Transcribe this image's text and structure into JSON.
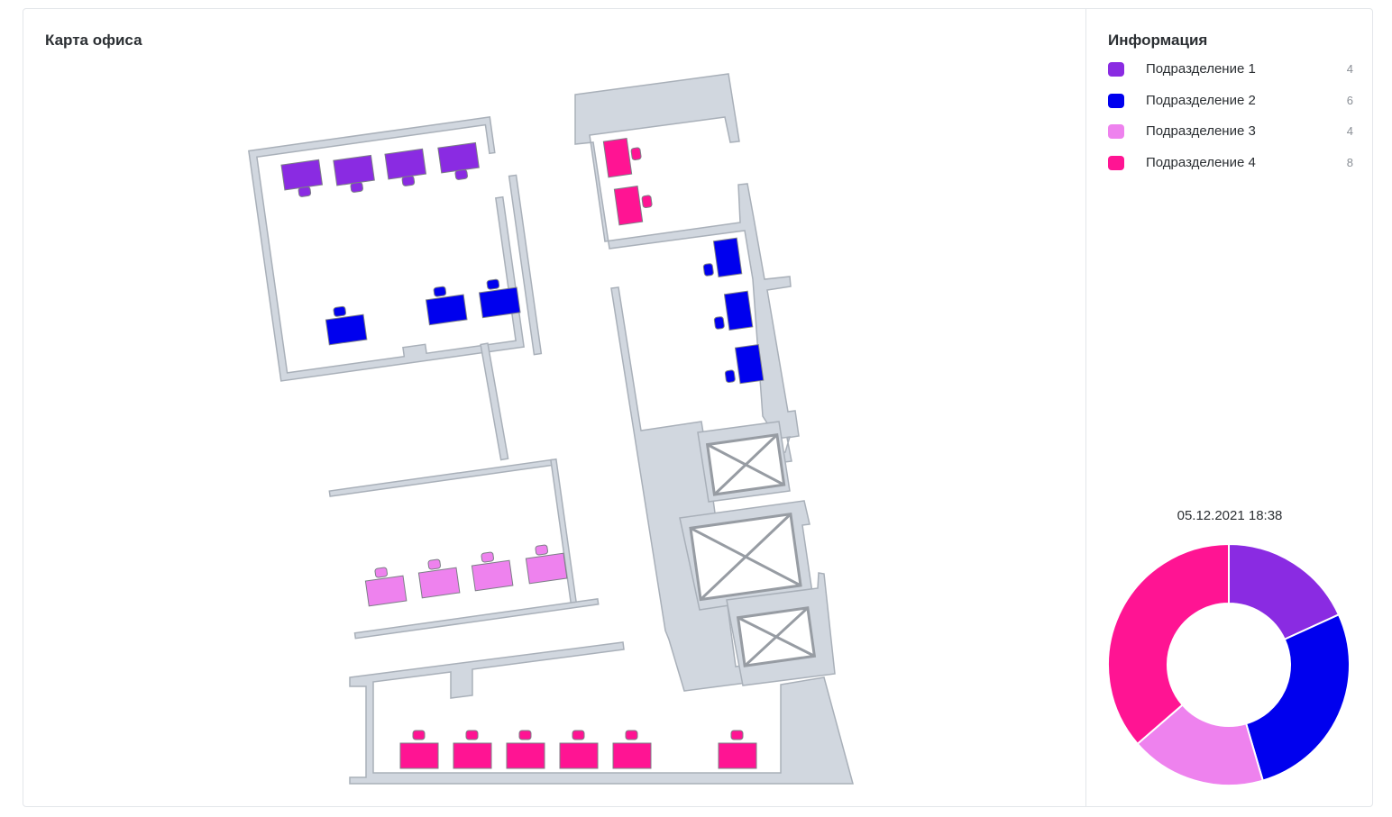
{
  "map": {
    "title": "Карта офиса"
  },
  "info": {
    "title": "Информация",
    "departments": [
      {
        "label": "Подразделение 1",
        "count": "4",
        "color": "#8a2be2"
      },
      {
        "label": "Подразделение 2",
        "count": "6",
        "color": "#0000ee"
      },
      {
        "label": "Подразделение 3",
        "count": "4",
        "color": "#ee82ee"
      },
      {
        "label": "Подразделение 4",
        "count": "8",
        "color": "#ff1493"
      }
    ],
    "timestamp": "05.12.2021 18:38"
  },
  "chart_data": {
    "type": "pie",
    "categories": [
      "Подразделение 1",
      "Подразделение 2",
      "Подразделение 3",
      "Подразделение 4"
    ],
    "values": [
      4,
      6,
      4,
      8
    ],
    "colors": [
      "#8a2be2",
      "#0000ee",
      "#ee82ee",
      "#ff1493"
    ],
    "title": "05.12.2021 18:38",
    "donut": true
  },
  "colors": {
    "wall_fill": "#d1d7df",
    "wall_stroke": "#a9b0b9",
    "elevator_stroke": "#979ca3",
    "chair_stroke": "#7c7f86"
  }
}
